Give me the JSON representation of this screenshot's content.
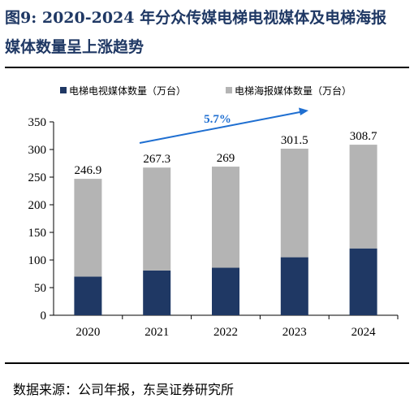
{
  "header": {
    "title_line1": "图9:  2020-2024 年分众传媒电梯电视媒体及电梯海报",
    "title_line2": "媒体数量呈上涨趋势"
  },
  "footer": {
    "source": "数据来源：公司年报，东吴证券研究所"
  },
  "chart_data": {
    "type": "bar",
    "stacked": true,
    "categories": [
      "2020",
      "2021",
      "2022",
      "2023",
      "2024"
    ],
    "series": [
      {
        "name": "电梯电视媒体数量（万台）",
        "color": "#1f3864",
        "values": [
          70,
          81,
          86,
          105,
          121
        ]
      },
      {
        "name": "电梯海报媒体数量（万台）",
        "color": "#b4b4b4",
        "values": [
          176.9,
          186.3,
          183,
          196.5,
          187.7
        ]
      }
    ],
    "totals": [
      "246.9",
      "267.3",
      "269",
      "301.5",
      "308.7"
    ],
    "yticks": [
      "0",
      "50",
      "100",
      "150",
      "200",
      "250",
      "300",
      "350"
    ],
    "ylim": [
      0,
      350
    ],
    "annotation": {
      "text": "5.7%",
      "color": "#1f6fd1"
    },
    "legend_position": "top",
    "grid": false
  }
}
